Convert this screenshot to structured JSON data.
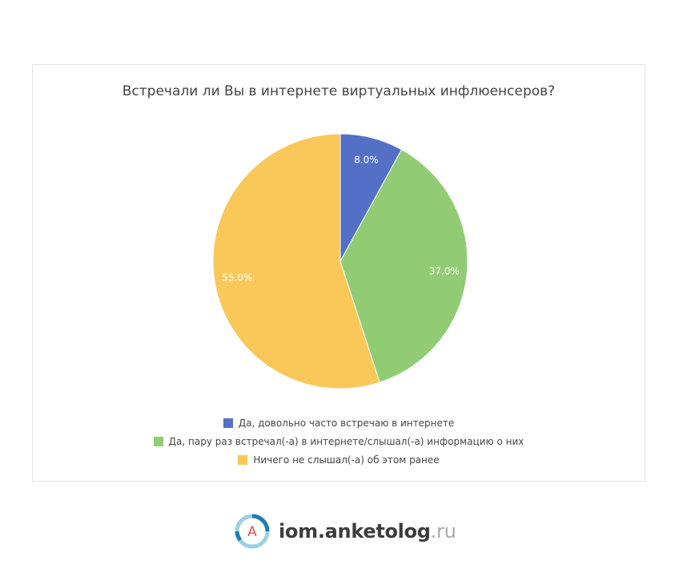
{
  "chart_data": {
    "type": "pie",
    "title": "Встречали ли Вы в интернете виртуальных инфлюенсеров?",
    "legend_position": "bottom",
    "slices": [
      {
        "label": "Да, довольно часто встречаю в интернете",
        "value": 8.0,
        "display": "8.0%",
        "color": "#5470c6"
      },
      {
        "label": "Да, пару раз встречал(-а) в интернете/слышал(-а) информацию о них",
        "value": 37.0,
        "display": "37.0%",
        "color": "#91cc75"
      },
      {
        "label": "Ничего не слышал(-а) об этом ранее",
        "value": 55.0,
        "display": "55.0%",
        "color": "#fac858"
      }
    ]
  },
  "brand": {
    "logo_letter": "A",
    "name": "iom.anketolog",
    "suffix": ".ru"
  }
}
